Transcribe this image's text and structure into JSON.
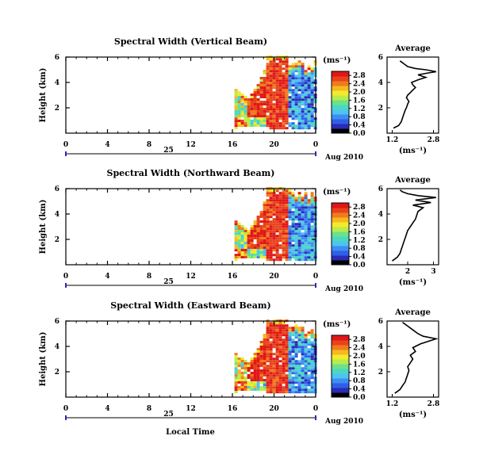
{
  "page": {
    "xlabel": "Local Time",
    "date_label": "Aug 2010",
    "day_label": "25",
    "units_label": "(ms⁻¹)",
    "average_title": "Average"
  },
  "colorscale": {
    "colors": [
      "#000000",
      "#2b2bb5",
      "#2f5fe8",
      "#3d8ef2",
      "#4fc3f0",
      "#49d8c0",
      "#6fe08a",
      "#b8ec4a",
      "#f2ea2e",
      "#f7b81f",
      "#f07b1d",
      "#e8421c",
      "#e01717"
    ]
  },
  "chart_data": [
    {
      "type": "heatmap",
      "title": "Spectral Width (Vertical Beam)",
      "ylabel": "Height (km)",
      "xticks": [
        "0",
        "4",
        "8",
        "12",
        "16",
        "20",
        "0"
      ],
      "xlim": [
        0,
        24
      ],
      "yticks": [
        "2",
        "4",
        "6"
      ],
      "ylim": [
        0,
        6
      ],
      "colorbar_ticks": [
        "0.0",
        "0.4",
        "0.8",
        "1.2",
        "1.6",
        "2.0",
        "2.4",
        "2.8"
      ],
      "colorbar_range": [
        0,
        3.0
      ],
      "average": {
        "title": "Average",
        "xlabel": "(ms⁻¹)",
        "xticks": [
          "1.2",
          "2.8"
        ],
        "xlim": [
          1.0,
          3.0
        ],
        "yticks": [
          "2",
          "4",
          "6"
        ],
        "ylim": [
          0,
          6
        ],
        "x": [
          1.25,
          1.45,
          1.55,
          1.6,
          1.65,
          1.7,
          1.75,
          1.8,
          1.85,
          1.75,
          1.8,
          1.9,
          2.0,
          2.1,
          2.0,
          1.95,
          2.2,
          2.5,
          2.2,
          2.6,
          2.9,
          2.5,
          2.1,
          1.8,
          1.7,
          1.6,
          1.5
        ],
        "y": [
          0.4,
          0.6,
          0.9,
          1.2,
          1.5,
          1.8,
          2.0,
          2.3,
          2.5,
          2.8,
          3.0,
          3.2,
          3.4,
          3.6,
          3.8,
          4.0,
          4.2,
          4.4,
          4.6,
          4.75,
          4.85,
          5.0,
          5.1,
          5.25,
          5.4,
          5.55,
          5.7
        ]
      }
    },
    {
      "type": "heatmap",
      "title": "Spectral Width (Northward Beam)",
      "ylabel": "Height (km)",
      "xticks": [
        "0",
        "4",
        "8",
        "12",
        "16",
        "20",
        "0"
      ],
      "xlim": [
        0,
        24
      ],
      "yticks": [
        "2",
        "4",
        "6"
      ],
      "ylim": [
        0,
        6
      ],
      "colorbar_ticks": [
        "0.0",
        "0.4",
        "0.8",
        "1.2",
        "1.6",
        "2.0",
        "2.4",
        "2.8"
      ],
      "colorbar_range": [
        0,
        3.0
      ],
      "average": {
        "title": "Average",
        "xlabel": "(ms⁻¹)",
        "xticks": [
          "2",
          "3"
        ],
        "xlim": [
          1.2,
          3.2
        ],
        "yticks": [
          "2",
          "4",
          "6"
        ],
        "ylim": [
          0,
          6
        ],
        "x": [
          1.4,
          1.6,
          1.7,
          1.75,
          1.8,
          1.85,
          1.9,
          1.95,
          2.0,
          2.1,
          2.2,
          2.3,
          2.35,
          2.4,
          2.6,
          2.2,
          2.9,
          2.3,
          3.1,
          2.4,
          2.0,
          1.8,
          1.7
        ],
        "y": [
          0.3,
          0.6,
          0.9,
          1.2,
          1.5,
          1.8,
          2.1,
          2.4,
          2.7,
          3.0,
          3.3,
          3.6,
          3.9,
          4.2,
          4.5,
          4.7,
          4.9,
          5.1,
          5.3,
          5.45,
          5.6,
          5.75,
          5.9
        ]
      }
    },
    {
      "type": "heatmap",
      "title": "Spectral Width (Eastward Beam)",
      "ylabel": "Height (km)",
      "xticks": [
        "0",
        "4",
        "8",
        "12",
        "16",
        "20",
        "0"
      ],
      "xlim": [
        0,
        24
      ],
      "yticks": [
        "2",
        "4",
        "6"
      ],
      "ylim": [
        0,
        6
      ],
      "colorbar_ticks": [
        "0.0",
        "0.4",
        "0.8",
        "1.2",
        "1.6",
        "2.0",
        "2.4",
        "2.8"
      ],
      "colorbar_range": [
        0,
        3.0
      ],
      "average": {
        "title": "Average",
        "xlabel": "(ms⁻¹)",
        "xticks": [
          "1.2",
          "2.8"
        ],
        "xlim": [
          1.0,
          3.0
        ],
        "yticks": [
          "2",
          "4",
          "6"
        ],
        "ylim": [
          0,
          6
        ],
        "x": [
          1.3,
          1.5,
          1.6,
          1.7,
          1.75,
          1.8,
          1.85,
          1.8,
          1.9,
          2.0,
          1.9,
          2.1,
          2.0,
          2.3,
          2.6,
          2.9,
          2.4,
          2.2,
          2.0,
          1.8,
          1.6
        ],
        "y": [
          0.3,
          0.6,
          0.9,
          1.2,
          1.5,
          1.8,
          2.1,
          2.4,
          2.7,
          3.0,
          3.3,
          3.6,
          3.9,
          4.2,
          4.4,
          4.6,
          4.8,
          5.0,
          5.3,
          5.6,
          5.9
        ]
      }
    }
  ]
}
